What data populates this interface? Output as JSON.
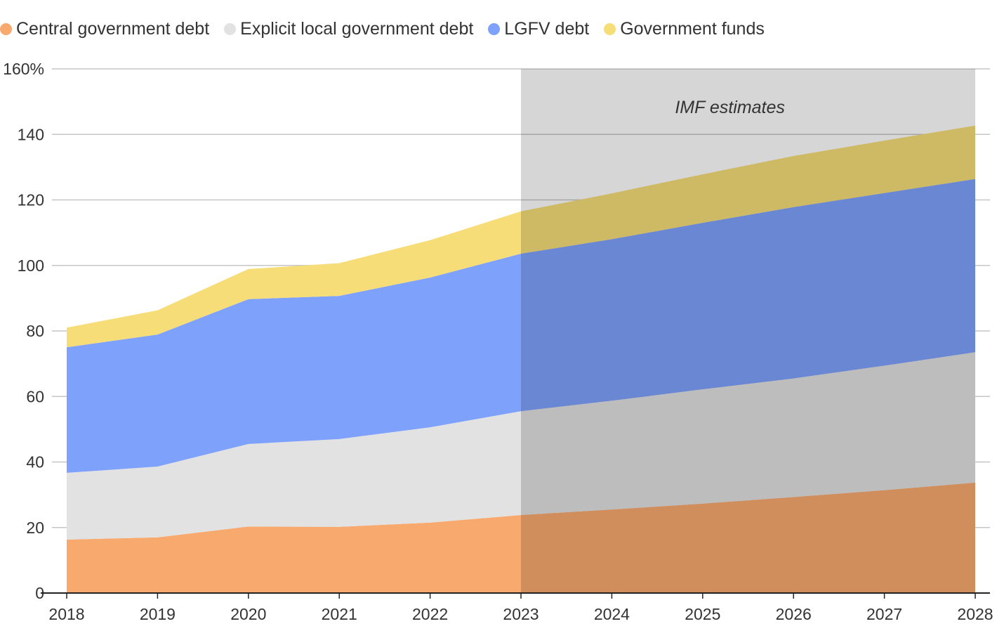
{
  "chart_data": {
    "type": "area",
    "stacked": true,
    "title": "",
    "xlabel": "",
    "ylabel": "",
    "x": [
      "2018",
      "2019",
      "2020",
      "2021",
      "2022",
      "2023",
      "2024",
      "2025",
      "2026",
      "2027",
      "2028"
    ],
    "ylim": [
      0,
      160
    ],
    "yticks": [
      0,
      20,
      40,
      60,
      80,
      100,
      120,
      140,
      160
    ],
    "ytick_labels": [
      "0",
      "20",
      "40",
      "60",
      "80",
      "100",
      "120",
      "140",
      "160%"
    ],
    "grid": true,
    "legend_position": "top-left",
    "series": [
      {
        "name": "Central government debt",
        "color": "#f8a96e",
        "values": [
          16.3,
          17.0,
          20.3,
          20.2,
          21.5,
          23.8,
          25.5,
          27.3,
          29.3,
          31.4,
          33.7
        ]
      },
      {
        "name": "Explicit local government debt",
        "color": "#e2e2e2",
        "values": [
          20.4,
          21.6,
          25.2,
          26.8,
          29.1,
          31.7,
          33.2,
          34.9,
          36.2,
          38.0,
          39.8
        ]
      },
      {
        "name": "LGFV debt",
        "color": "#7ea1fc",
        "values": [
          38.3,
          40.3,
          44.2,
          43.7,
          45.7,
          48.1,
          49.3,
          50.8,
          52.3,
          52.7,
          52.9
        ]
      },
      {
        "name": "Government funds",
        "color": "#f6dd78",
        "values": [
          6.0,
          7.4,
          9.2,
          10.0,
          11.4,
          12.9,
          14.0,
          14.8,
          15.6,
          16.0,
          16.3
        ]
      }
    ],
    "projection": {
      "start": "2023",
      "end": "2028",
      "label": "IMF estimates",
      "color": "#d6d6d6"
    }
  }
}
